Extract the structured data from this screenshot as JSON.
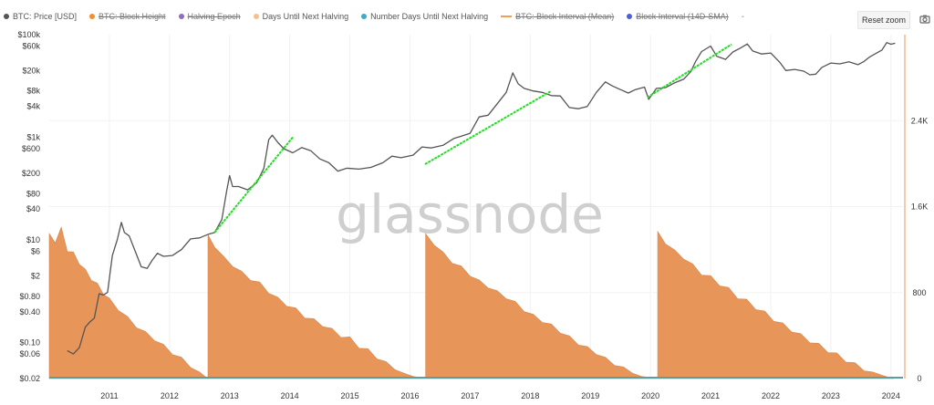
{
  "toolbar": {
    "reset_label": "Reset zoom",
    "camera_icon": "camera-icon"
  },
  "watermark": "glassnode",
  "legend": [
    {
      "label": "BTC: Price [USD]",
      "color": "#555555",
      "off": false,
      "kind": "dot"
    },
    {
      "label": "BTC: Block Height",
      "color": "#f28e2b",
      "off": true,
      "kind": "dot"
    },
    {
      "label": "Halving Epoch",
      "color": "#8e6cc0",
      "off": true,
      "kind": "dot"
    },
    {
      "label": "Days Until Next Halving",
      "color": "#f5c08a",
      "off": false,
      "kind": "dot"
    },
    {
      "label": "Number Days Until Next Halving",
      "color": "#3fa9c8",
      "off": false,
      "kind": "dot"
    },
    {
      "label": "BTC: Block Interval (Mean)",
      "color": "#f0a050",
      "off": true,
      "kind": "bar"
    },
    {
      "label": "Block Interval (14D-SMA)",
      "color": "#4a5fe0",
      "off": true,
      "kind": "dot"
    }
  ],
  "legend_more": "-",
  "chart_data": {
    "type": "line",
    "colors": {
      "price": "#555555",
      "area": "#e8955a",
      "trend": "#22dd22",
      "baseline": "#5b9e9e"
    },
    "x_ticks": [
      "2011",
      "2012",
      "2013",
      "2014",
      "2015",
      "2016",
      "2017",
      "2018",
      "2019",
      "2020",
      "2021",
      "2022",
      "2023",
      "2024"
    ],
    "y_left_ticks": [
      "$100k",
      "$60k",
      "$20k",
      "$8k",
      "$4k",
      "$1k",
      "$600",
      "$200",
      "$80",
      "$40",
      "$10",
      "$6",
      "$2",
      "$0.80",
      "$0.40",
      "$0.10",
      "$0.06",
      "$0.02"
    ],
    "y_left_scale": "log",
    "y_left_range": [
      0.02,
      100000
    ],
    "y_right_ticks": [
      "0",
      "800",
      "1.6K",
      "2.4K"
    ],
    "y_right_range": [
      0,
      3200
    ],
    "x_range": [
      2010.25,
      2024.45
    ],
    "series": [
      {
        "name": "BTC: Price [USD]",
        "kind": "line",
        "scale": "left",
        "points": [
          [
            2010.55,
            0.07
          ],
          [
            2010.65,
            0.06
          ],
          [
            2010.75,
            0.08
          ],
          [
            2010.85,
            0.2
          ],
          [
            2010.92,
            0.25
          ],
          [
            2011.0,
            0.3
          ],
          [
            2011.08,
            0.9
          ],
          [
            2011.15,
            0.85
          ],
          [
            2011.22,
            0.95
          ],
          [
            2011.3,
            5.0
          ],
          [
            2011.38,
            10.0
          ],
          [
            2011.45,
            22.0
          ],
          [
            2011.5,
            14.0
          ],
          [
            2011.58,
            12.0
          ],
          [
            2011.68,
            6.0
          ],
          [
            2011.78,
            3.0
          ],
          [
            2011.88,
            2.8
          ],
          [
            2011.96,
            4.0
          ],
          [
            2012.05,
            5.5
          ],
          [
            2012.15,
            4.8
          ],
          [
            2012.3,
            5.0
          ],
          [
            2012.45,
            6.5
          ],
          [
            2012.6,
            10.5
          ],
          [
            2012.75,
            11.0
          ],
          [
            2012.9,
            13.0
          ],
          [
            2013.0,
            14.0
          ],
          [
            2013.12,
            25.0
          ],
          [
            2013.2,
            90.0
          ],
          [
            2013.25,
            180.0
          ],
          [
            2013.3,
            110.0
          ],
          [
            2013.4,
            110.0
          ],
          [
            2013.55,
            95.0
          ],
          [
            2013.7,
            130.0
          ],
          [
            2013.82,
            250.0
          ],
          [
            2013.9,
            900.0
          ],
          [
            2013.96,
            1100.0
          ],
          [
            2014.05,
            800.0
          ],
          [
            2014.15,
            600.0
          ],
          [
            2014.3,
            500.0
          ],
          [
            2014.45,
            630.0
          ],
          [
            2014.6,
            550.0
          ],
          [
            2014.75,
            380.0
          ],
          [
            2014.9,
            320.0
          ],
          [
            2015.05,
            220.0
          ],
          [
            2015.2,
            250.0
          ],
          [
            2015.4,
            240.0
          ],
          [
            2015.6,
            260.0
          ],
          [
            2015.8,
            320.0
          ],
          [
            2015.95,
            430.0
          ],
          [
            2016.1,
            400.0
          ],
          [
            2016.3,
            450.0
          ],
          [
            2016.45,
            650.0
          ],
          [
            2016.6,
            620.0
          ],
          [
            2016.8,
            700.0
          ],
          [
            2016.98,
            950.0
          ],
          [
            2017.1,
            1050.0
          ],
          [
            2017.25,
            1200.0
          ],
          [
            2017.4,
            2500.0
          ],
          [
            2017.55,
            2700.0
          ],
          [
            2017.7,
            4500.0
          ],
          [
            2017.85,
            7500.0
          ],
          [
            2017.96,
            18000.0
          ],
          [
            2018.05,
            11000.0
          ],
          [
            2018.15,
            9000.0
          ],
          [
            2018.3,
            8000.0
          ],
          [
            2018.45,
            7500.0
          ],
          [
            2018.6,
            6500.0
          ],
          [
            2018.75,
            6400.0
          ],
          [
            2018.9,
            3800.0
          ],
          [
            2019.05,
            3600.0
          ],
          [
            2019.2,
            4000.0
          ],
          [
            2019.35,
            7500.0
          ],
          [
            2019.5,
            12000.0
          ],
          [
            2019.62,
            10000.0
          ],
          [
            2019.75,
            8500.0
          ],
          [
            2019.88,
            7300.0
          ],
          [
            2020.0,
            8500.0
          ],
          [
            2020.15,
            9500.0
          ],
          [
            2020.22,
            5500.0
          ],
          [
            2020.35,
            9000.0
          ],
          [
            2020.5,
            9300.0
          ],
          [
            2020.65,
            11500.0
          ],
          [
            2020.8,
            13500.0
          ],
          [
            2020.92,
            19000.0
          ],
          [
            2021.0,
            30000.0
          ],
          [
            2021.1,
            47000.0
          ],
          [
            2021.25,
            60000.0
          ],
          [
            2021.35,
            38000.0
          ],
          [
            2021.5,
            33000.0
          ],
          [
            2021.62,
            46000.0
          ],
          [
            2021.75,
            55000.0
          ],
          [
            2021.86,
            66000.0
          ],
          [
            2021.95,
            48000.0
          ],
          [
            2022.1,
            42000.0
          ],
          [
            2022.25,
            44000.0
          ],
          [
            2022.4,
            29000.0
          ],
          [
            2022.5,
            20000.0
          ],
          [
            2022.65,
            21000.0
          ],
          [
            2022.8,
            19500.0
          ],
          [
            2022.9,
            16500.0
          ],
          [
            2023.0,
            17000.0
          ],
          [
            2023.1,
            23000.0
          ],
          [
            2023.25,
            28000.0
          ],
          [
            2023.4,
            27000.0
          ],
          [
            2023.55,
            29500.0
          ],
          [
            2023.7,
            26000.0
          ],
          [
            2023.8,
            30000.0
          ],
          [
            2023.9,
            37000.0
          ],
          [
            2024.0,
            43000.0
          ],
          [
            2024.1,
            50000.0
          ],
          [
            2024.18,
            70000.0
          ],
          [
            2024.25,
            65000.0
          ],
          [
            2024.32,
            68000.0
          ]
        ]
      },
      {
        "name": "Days Until Next Halving",
        "kind": "area",
        "scale": "right",
        "points": [
          [
            2010.25,
            1330
          ],
          [
            2010.35,
            1280
          ],
          [
            2010.45,
            1390
          ],
          [
            2010.55,
            1200
          ],
          [
            2010.65,
            1160
          ],
          [
            2010.75,
            1080
          ],
          [
            2010.85,
            1000
          ],
          [
            2010.95,
            930
          ],
          [
            2011.05,
            870
          ],
          [
            2011.15,
            800
          ],
          [
            2011.25,
            730
          ],
          [
            2011.4,
            650
          ],
          [
            2011.55,
            560
          ],
          [
            2011.7,
            490
          ],
          [
            2011.85,
            420
          ],
          [
            2012.0,
            370
          ],
          [
            2012.15,
            300
          ],
          [
            2012.3,
            240
          ],
          [
            2012.45,
            180
          ],
          [
            2012.6,
            120
          ],
          [
            2012.75,
            60
          ],
          [
            2012.88,
            0
          ],
          [
            2012.89,
            1320
          ],
          [
            2013.0,
            1240
          ],
          [
            2013.15,
            1120
          ],
          [
            2013.3,
            1060
          ],
          [
            2013.45,
            980
          ],
          [
            2013.6,
            930
          ],
          [
            2013.75,
            880
          ],
          [
            2013.9,
            810
          ],
          [
            2014.05,
            740
          ],
          [
            2014.2,
            690
          ],
          [
            2014.35,
            640
          ],
          [
            2014.5,
            580
          ],
          [
            2014.65,
            540
          ],
          [
            2014.8,
            500
          ],
          [
            2014.95,
            450
          ],
          [
            2015.1,
            400
          ],
          [
            2015.25,
            370
          ],
          [
            2015.4,
            300
          ],
          [
            2015.55,
            260
          ],
          [
            2015.7,
            200
          ],
          [
            2015.85,
            140
          ],
          [
            2016.0,
            100
          ],
          [
            2016.15,
            50
          ],
          [
            2016.3,
            20
          ],
          [
            2016.5,
            0
          ],
          [
            2016.51,
            1330
          ],
          [
            2016.65,
            1260
          ],
          [
            2016.8,
            1160
          ],
          [
            2016.95,
            1090
          ],
          [
            2017.1,
            1030
          ],
          [
            2017.25,
            970
          ],
          [
            2017.4,
            900
          ],
          [
            2017.55,
            860
          ],
          [
            2017.7,
            800
          ],
          [
            2017.85,
            760
          ],
          [
            2018.0,
            700
          ],
          [
            2018.15,
            640
          ],
          [
            2018.3,
            580
          ],
          [
            2018.45,
            540
          ],
          [
            2018.6,
            490
          ],
          [
            2018.75,
            440
          ],
          [
            2018.9,
            380
          ],
          [
            2019.05,
            330
          ],
          [
            2019.2,
            280
          ],
          [
            2019.35,
            240
          ],
          [
            2019.5,
            180
          ],
          [
            2019.65,
            140
          ],
          [
            2019.8,
            90
          ],
          [
            2019.95,
            50
          ],
          [
            2020.1,
            20
          ],
          [
            2020.36,
            0
          ],
          [
            2020.37,
            1350
          ],
          [
            2020.5,
            1270
          ],
          [
            2020.65,
            1180
          ],
          [
            2020.8,
            1130
          ],
          [
            2020.95,
            1050
          ],
          [
            2021.1,
            980
          ],
          [
            2021.25,
            940
          ],
          [
            2021.4,
            880
          ],
          [
            2021.55,
            830
          ],
          [
            2021.7,
            760
          ],
          [
            2021.85,
            720
          ],
          [
            2022.0,
            660
          ],
          [
            2022.15,
            610
          ],
          [
            2022.3,
            550
          ],
          [
            2022.45,
            500
          ],
          [
            2022.6,
            450
          ],
          [
            2022.75,
            400
          ],
          [
            2022.9,
            350
          ],
          [
            2023.05,
            310
          ],
          [
            2023.2,
            260
          ],
          [
            2023.35,
            220
          ],
          [
            2023.5,
            170
          ],
          [
            2023.65,
            130
          ],
          [
            2023.8,
            90
          ],
          [
            2023.95,
            60
          ],
          [
            2024.1,
            30
          ],
          [
            2024.25,
            5
          ],
          [
            2024.3,
            0
          ]
        ]
      },
      {
        "name": "Trend",
        "kind": "segments",
        "scale": "left",
        "segments": [
          [
            [
              2013.0,
              14.0
            ],
            [
              2014.3,
              1000.0
            ]
          ],
          [
            [
              2016.5,
              300.0
            ],
            [
              2018.6,
              8000.0
            ]
          ],
          [
            [
              2020.2,
              6000.0
            ],
            [
              2021.6,
              65000.0
            ]
          ]
        ]
      }
    ],
    "xlabel": "",
    "ylabel": ""
  }
}
